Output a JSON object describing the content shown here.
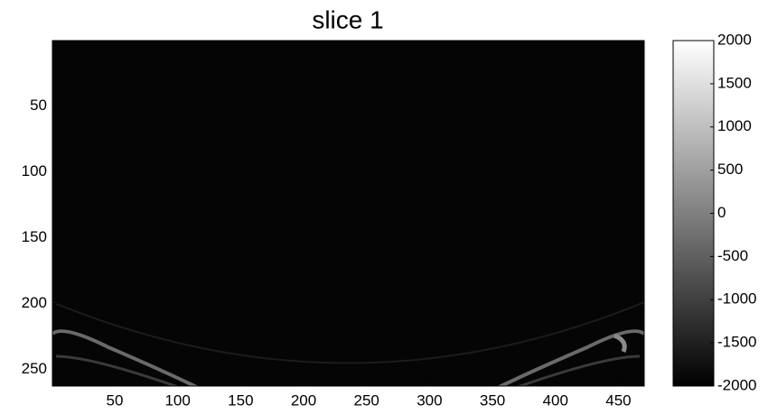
{
  "chart_data": {
    "type": "image",
    "title": "slice 1",
    "colormap": "gray",
    "xlim": [
      0.5,
      470.5
    ],
    "xticks": [
      50,
      100,
      150,
      200,
      250,
      300,
      350,
      400,
      450
    ],
    "ylim": [
      0.5,
      262.5
    ],
    "yticks": [
      50,
      100,
      150,
      200,
      250
    ],
    "clim": [
      -2000,
      2000
    ],
    "cticks": [
      -2000,
      -1500,
      -1000,
      -500,
      0,
      500,
      1000,
      1500,
      2000
    ]
  }
}
